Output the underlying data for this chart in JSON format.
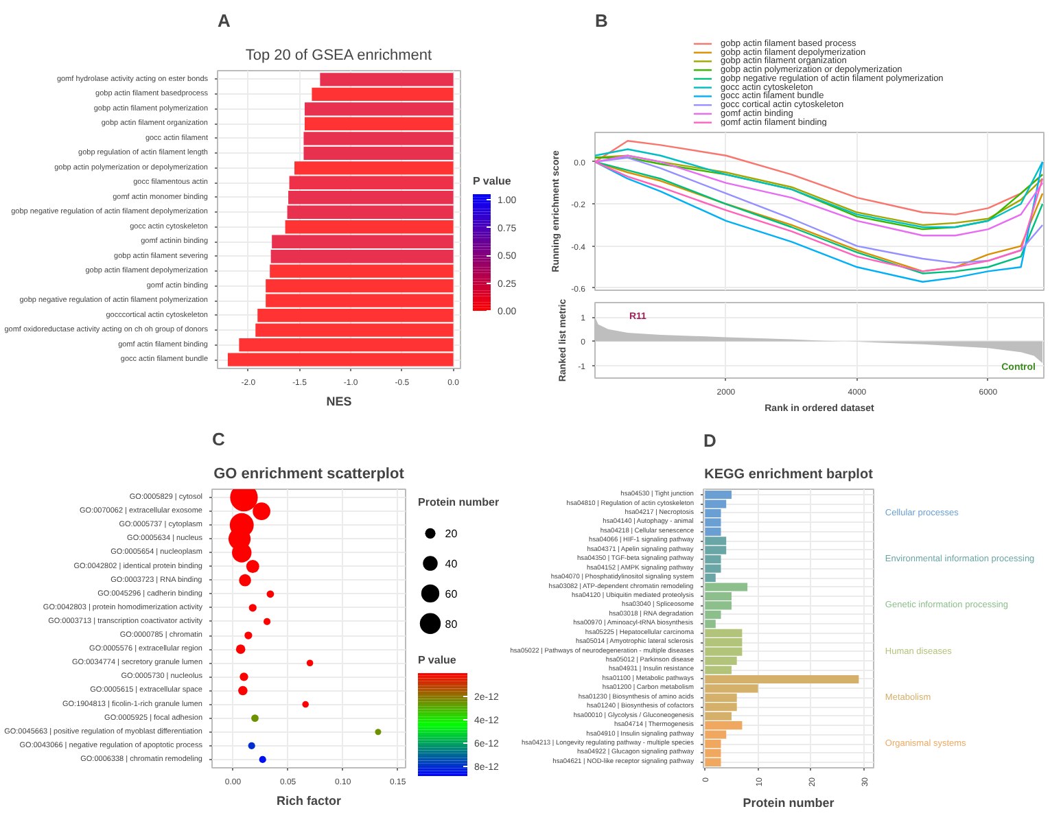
{
  "chart_data": [
    {
      "type": "bar",
      "orientation": "horizontal",
      "title": "Top 20 of GSEA enrichment",
      "xlabel": "NES",
      "annotations": [
        "A"
      ],
      "categories": [
        "gomf hydrolase activity acting on ester bonds",
        "gobp actin filament basedprocess",
        "gobp actin filament polymerization",
        "gobp actin filament organization",
        "gocc actin filament",
        "gobp regulation of actin filament length",
        "gobp actin polymerization or depolymerization",
        "gocc filamentous actin",
        "gomf actin monomer binding",
        "gobp negative regulation of actin filament depolymerization",
        "gocc actin cytoskeleton",
        "gomf actinin binding",
        "gobp actin filament severing",
        "gobp actin filament depolymerization",
        "gomf actin binding",
        "gobp negative regulation of actin filament polymerization",
        "gocccortical actin cytoskeleton",
        "gomf oxidoreductase activity acting on ch oh group of donors",
        "gomf actin filament binding",
        "gocc actin filament bundle"
      ],
      "values": [
        -1.3,
        -1.38,
        -1.45,
        -1.45,
        -1.46,
        -1.46,
        -1.55,
        -1.6,
        -1.61,
        -1.62,
        -1.64,
        -1.77,
        -1.78,
        -1.79,
        -1.83,
        -1.83,
        -1.91,
        -1.93,
        -2.09,
        -2.2
      ],
      "colors": [
        "#e8304f",
        "#ff3333",
        "#e8304f",
        "#ff3333",
        "#e8304f",
        "#e8304f",
        "#ff3333",
        "#ee3048",
        "#e8304f",
        "#e8304f",
        "#ff3333",
        "#e8304f",
        "#e8304f",
        "#ff3333",
        "#ff3333",
        "#ff3333",
        "#ff3333",
        "#ff3333",
        "#ff3333",
        "#ff3333"
      ],
      "xlim": [
        -2.3,
        0.07
      ],
      "xticks": [
        {
          "value": -2,
          "label": "-2.0"
        },
        {
          "value": -1.5,
          "label": "-1.5"
        },
        {
          "value": -1,
          "label": "-1.0"
        },
        {
          "value": -0.5,
          "label": "-0.5"
        },
        {
          "value": 0,
          "label": "0.0"
        }
      ],
      "grid": true,
      "clabel": "P value",
      "clim": [
        0,
        1.05
      ],
      "cticks": [
        {
          "value": 0,
          "label": "0.00"
        },
        {
          "value": 0.25,
          "label": "0.25"
        },
        {
          "value": 0.5,
          "label": "0.50"
        },
        {
          "value": 0.75,
          "label": "0.75"
        },
        {
          "value": 1,
          "label": "1.00"
        }
      ]
    },
    {
      "type": "line",
      "annotations": [
        "B"
      ],
      "ylabel": "Running enrichment score",
      "x": [
        0,
        500,
        1000,
        2000,
        3000,
        4000,
        5000,
        5500,
        6000,
        6500,
        6830
      ],
      "series": [
        {
          "name": "gobp actin filament based process",
          "color": "#f8766d",
          "values": [
            0.0,
            0.1,
            0.08,
            0.03,
            -0.06,
            -0.17,
            -0.24,
            -0.25,
            -0.22,
            -0.15,
            -0.06
          ]
        },
        {
          "name": "gobp actin filament depolymerization",
          "color": "#d89000",
          "values": [
            0.0,
            -0.05,
            -0.09,
            -0.2,
            -0.3,
            -0.42,
            -0.52,
            -0.5,
            -0.44,
            -0.4,
            -0.15
          ]
        },
        {
          "name": "gobp actin filament organization",
          "color": "#a3a500",
          "values": [
            0.02,
            0.03,
            0.0,
            -0.05,
            -0.12,
            -0.24,
            -0.3,
            -0.29,
            -0.27,
            -0.18,
            -0.08
          ]
        },
        {
          "name": "gobp actin polymerization or depolymerization",
          "color": "#39b600",
          "values": [
            0.02,
            0.02,
            -0.01,
            -0.06,
            -0.13,
            -0.26,
            -0.32,
            -0.31,
            -0.28,
            -0.15,
            -0.06
          ]
        },
        {
          "name": "gobp negative regulation of actin filament polymerization",
          "color": "#00bf7d",
          "values": [
            0.0,
            -0.04,
            -0.08,
            -0.2,
            -0.31,
            -0.43,
            -0.53,
            -0.52,
            -0.5,
            -0.45,
            -0.2
          ]
        },
        {
          "name": "gocc actin cytoskeleton",
          "color": "#00bfc4",
          "values": [
            0.03,
            0.06,
            0.03,
            -0.06,
            -0.13,
            -0.25,
            -0.31,
            -0.31,
            -0.28,
            -0.2,
            0.0
          ]
        },
        {
          "name": "gocc actin filament bundle",
          "color": "#00b0f6",
          "values": [
            0.0,
            -0.08,
            -0.14,
            -0.28,
            -0.38,
            -0.5,
            -0.57,
            -0.55,
            -0.52,
            -0.5,
            0.0
          ]
        },
        {
          "name": "gocc cortical actin cytoskeleton",
          "color": "#9590ff",
          "values": [
            0.0,
            0.02,
            -0.03,
            -0.15,
            -0.27,
            -0.4,
            -0.46,
            -0.48,
            -0.47,
            -0.42,
            -0.3
          ]
        },
        {
          "name": "gomf actin binding",
          "color": "#e76bf3",
          "values": [
            0.0,
            0.03,
            0.0,
            -0.1,
            -0.17,
            -0.28,
            -0.35,
            -0.35,
            -0.32,
            -0.25,
            -0.1
          ]
        },
        {
          "name": "gomf actin filament binding",
          "color": "#ff62bc",
          "values": [
            0.0,
            -0.07,
            -0.12,
            -0.23,
            -0.33,
            -0.45,
            -0.52,
            -0.5,
            -0.47,
            -0.42,
            -0.08
          ]
        }
      ],
      "xlim": [
        0,
        6850
      ],
      "ylim": [
        -0.61,
        0.14
      ],
      "xticks": [
        2000,
        4000,
        6000
      ],
      "yticks": [
        -0.6,
        -0.4,
        -0.2,
        {
          "value": 0,
          "label": "0.0"
        }
      ],
      "tick_labels": "y",
      "grid": true,
      "legend": "top",
      "line_style": "solid"
    },
    {
      "type": "area",
      "annotations": [
        "R11",
        "Control"
      ],
      "xlabel": "Rank in ordered dataset",
      "ylabel": "Ranked list metric",
      "x": [
        0,
        50,
        200,
        500,
        1000,
        2000,
        3000,
        3500,
        4000,
        5000,
        6000,
        6500,
        6700,
        6830
      ],
      "values": [
        1.0,
        0.7,
        0.5,
        0.35,
        0.27,
        0.17,
        0.08,
        0.02,
        -0.02,
        -0.12,
        -0.28,
        -0.45,
        -0.6,
        -0.9
      ],
      "color": "#bebebe",
      "xlim": [
        0,
        6850
      ],
      "ylim": [
        -1.52,
        1.6
      ],
      "xticks": [
        2000,
        4000,
        6000
      ],
      "yticks": [
        -1,
        0,
        1
      ],
      "grid": true
    },
    {
      "type": "bubble",
      "orientation": "horizontal",
      "title": "GO enrichment scatterplot",
      "xlabel": "Rich factor",
      "annotations": [
        "C"
      ],
      "categories": [
        "GO:0005829 | cytosol",
        "GO:0070062 | extracellular exosome",
        "GO:0005737 | cytoplasm",
        "GO:0005634 | nucleus",
        "GO:0005654 | nucleoplasm",
        "GO:0042802 | identical protein binding",
        "GO:0003723 | RNA binding",
        "GO:0045296 | cadherin binding",
        "GO:0042803 | protein homodimerization activity",
        "GO:0003713 | transcription coactivator activity",
        "GO:0000785 | chromatin",
        "GO:0005576 | extracellular region",
        "GO:0034774 | secretory granule lumen",
        "GO:0005730 | nucleolus",
        "GO:0005615 | extracellular space",
        "GO:1904813 | ficolin-1-rich granule lumen",
        "GO:0005925 | focal adhesion",
        "GO:0045663 | positive regulation of myoblast differentiation",
        "GO:0043066 | negative regulation of apoptotic process",
        "GO:0006338 | chromatin remodeling"
      ],
      "values": [
        0.01,
        0.026,
        0.008,
        0.006,
        0.008,
        0.018,
        0.011,
        0.034,
        0.018,
        0.031,
        0.014,
        0.007,
        0.07,
        0.01,
        0.009,
        0.066,
        0.02,
        0.132,
        0.017,
        0.027
      ],
      "sizes": [
        140,
        57,
        105,
        90,
        70,
        31,
        27,
        10,
        11,
        9,
        11,
        16,
        8,
        13,
        16,
        8,
        10,
        7,
        9,
        9
      ],
      "size_legend": [
        20,
        40,
        60,
        80
      ],
      "legend_title": "Protein number",
      "cvalues": [
        0,
        0,
        0,
        0,
        0,
        0,
        0,
        0,
        0,
        0,
        0,
        0,
        0,
        0,
        0,
        0,
        2.5e-12,
        2.5e-12,
        8e-12,
        8.5e-12
      ],
      "clabel": "P value",
      "clim": [
        8.8e-12,
        0
      ],
      "cticks": [
        2e-12,
        4e-12,
        6e-12,
        8e-12
      ],
      "xlim": [
        -0.019,
        0.157
      ],
      "xticks": [
        {
          "value": 0,
          "label": "0.00"
        },
        {
          "value": 0.05,
          "label": "0.05"
        },
        {
          "value": 0.1,
          "label": "0.10"
        },
        {
          "value": 0.15,
          "label": "0.15"
        }
      ],
      "grid": true
    },
    {
      "type": "bar",
      "orientation": "horizontal",
      "stacked": true,
      "title": "KEGG enrichment barplot",
      "xlabel": "Protein number",
      "annotations": [
        "D"
      ],
      "categories": [
        "hsa04530 | Tight junction",
        "hsa04810 | Regulation of actin cytoskeleton",
        "hsa04217 | Necroptosis",
        "hsa04140 | Autophagy - animal",
        "hsa04218 | Cellular senescence",
        "hsa04066 | HIF-1 signaling pathway",
        "hsa04371 | Apelin signaling pathway",
        "hsa04350 | TGF-beta signaling pathway",
        "hsa04152 | AMPK signaling pathway",
        "hsa04070 | Phosphatidylinositol signaling system",
        "hsa03082 | ATP-dependent chromatin remodeling",
        "hsa04120 | Ubiquitin mediated proteolysis",
        "hsa03040 | Spliceosome",
        "hsa03018 | RNA degradation",
        "hsa00970 | Aminoacyl-tRNA biosynthesis",
        "hsa05225 | Hepatocellular carcinoma",
        "hsa05014 | Amyotrophic lateral sclerosis",
        "hsa05022 | Pathways of neurodegeneration - multiple diseases",
        "hsa05012 | Parkinson disease",
        "hsa04931 | Insulin resistance",
        "hsa01100 | Metabolic pathways",
        "hsa01200 | Carbon metabolism",
        "hsa01230 | Biosynthesis of amino acids",
        "hsa01240 | Biosynthesis of cofactors",
        "hsa00010 | Glycolysis / Gluconeogenesis",
        "hsa04714 | Thermogenesis",
        "hsa04910 | Insulin signaling pathway",
        "hsa04213 | Longevity regulating pathway - multiple species",
        "hsa04922 | Glucagon signaling pathway",
        "hsa04621 | NOD-like receptor signaling pathway"
      ],
      "series": [
        {
          "name": "Cellular processes",
          "color": "#6a9fd4",
          "values": [
            5,
            4,
            3,
            3,
            3,
            null,
            null,
            null,
            null,
            null,
            null,
            null,
            null,
            null,
            null,
            null,
            null,
            null,
            null,
            null,
            null,
            null,
            null,
            null,
            null,
            null,
            null,
            null,
            null,
            null
          ]
        },
        {
          "name": "Environmental information processing",
          "color": "#6aa6a6",
          "values": [
            null,
            null,
            null,
            null,
            null,
            4,
            4,
            3,
            3,
            2,
            null,
            null,
            null,
            null,
            null,
            null,
            null,
            null,
            null,
            null,
            null,
            null,
            null,
            null,
            null,
            null,
            null,
            null,
            null,
            null
          ]
        },
        {
          "name": "Genetic information processing",
          "color": "#8cbf8c",
          "values": [
            null,
            null,
            null,
            null,
            null,
            null,
            null,
            null,
            null,
            null,
            8,
            5,
            5,
            3,
            2,
            null,
            null,
            null,
            null,
            null,
            null,
            null,
            null,
            null,
            null,
            null,
            null,
            null,
            null,
            null
          ]
        },
        {
          "name": "Human diseases",
          "color": "#b2c47a",
          "values": [
            null,
            null,
            null,
            null,
            null,
            null,
            null,
            null,
            null,
            null,
            null,
            null,
            null,
            null,
            null,
            7,
            7,
            7,
            6,
            5,
            null,
            null,
            null,
            null,
            null,
            null,
            null,
            null,
            null,
            null
          ]
        },
        {
          "name": "Metabolism",
          "color": "#d4b06a",
          "values": [
            null,
            null,
            null,
            null,
            null,
            null,
            null,
            null,
            null,
            null,
            null,
            null,
            null,
            null,
            null,
            null,
            null,
            null,
            null,
            null,
            29,
            10,
            6,
            6,
            5,
            null,
            null,
            null,
            null,
            null
          ]
        },
        {
          "name": "Organismal systems",
          "color": "#f0a860",
          "values": [
            null,
            null,
            null,
            null,
            null,
            null,
            null,
            null,
            null,
            null,
            null,
            null,
            null,
            null,
            null,
            null,
            null,
            null,
            null,
            null,
            null,
            null,
            null,
            null,
            null,
            7,
            4,
            3,
            3,
            3
          ]
        }
      ],
      "xlim": [
        -0.3,
        31.8
      ],
      "xticks": [
        0,
        10,
        20,
        30
      ],
      "grid": true
    }
  ]
}
